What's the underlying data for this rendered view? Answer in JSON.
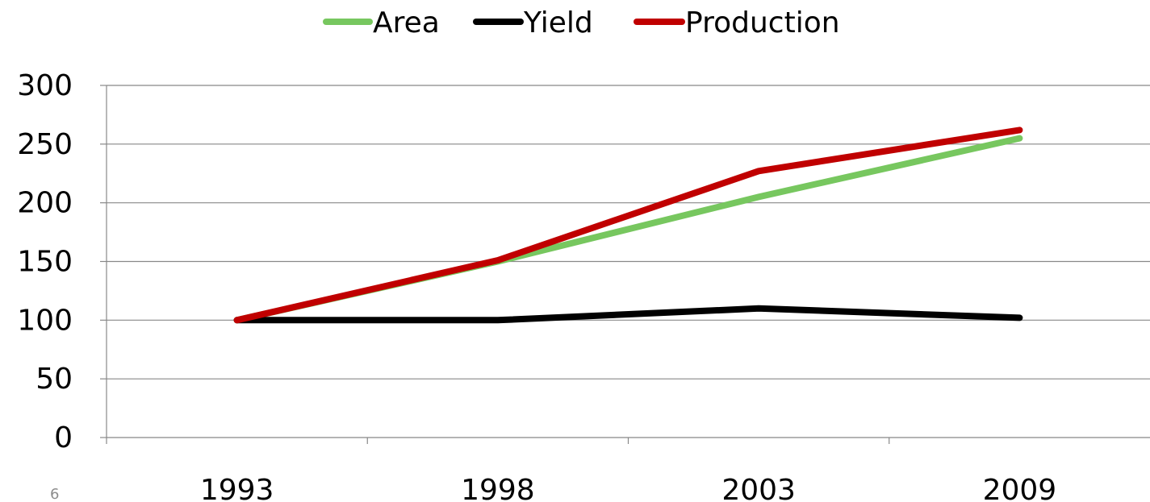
{
  "slide_number": "6",
  "chart_data": {
    "type": "line",
    "categories": [
      "1993",
      "1998",
      "2003",
      "2009"
    ],
    "series": [
      {
        "name": "Area",
        "values": [
          100,
          150,
          205,
          255
        ],
        "color": "#77c75f"
      },
      {
        "name": "Yield",
        "values": [
          100,
          100,
          110,
          102
        ],
        "color": "#000000"
      },
      {
        "name": "Production",
        "values": [
          100,
          151,
          227,
          262
        ],
        "color": "#c00000"
      }
    ],
    "ylim": [
      0,
      300
    ],
    "y_ticks": [
      "0",
      "50",
      "100",
      "150",
      "200",
      "250",
      "300"
    ],
    "grid": true,
    "legend": "top-center",
    "xlabel": "",
    "ylabel": "",
    "title": ""
  }
}
